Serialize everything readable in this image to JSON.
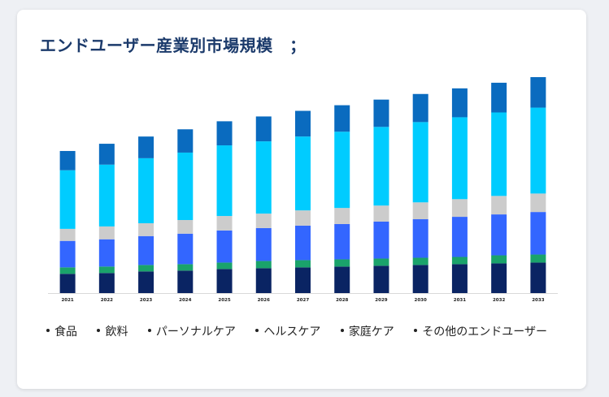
{
  "title": "エンドユーザー産業別市場規模　；",
  "chart_data": {
    "type": "bar",
    "stacked": true,
    "title": "エンドユーザー産業別市場規模　；",
    "xlabel": "",
    "ylabel": "",
    "grid": false,
    "legend_position": "bottom",
    "categories": [
      "2021",
      "2022",
      "2023",
      "2024",
      "2025",
      "2026",
      "2027",
      "2028",
      "2029",
      "2030",
      "2031",
      "2032",
      "2033"
    ],
    "ylim": [
      0,
      270
    ],
    "series": [
      {
        "name": "食品",
        "color": "#0a2463",
        "values": [
          24,
          25,
          27,
          28,
          30,
          31,
          32,
          33,
          34,
          35,
          36,
          37,
          38
        ]
      },
      {
        "name": "飲料",
        "color": "#1aa36b",
        "values": [
          8,
          8,
          8,
          8,
          8,
          9,
          9,
          9,
          9,
          9,
          9,
          10,
          10
        ]
      },
      {
        "name": "パーソナルケア",
        "color": "#3366ff",
        "values": [
          33,
          34,
          36,
          38,
          40,
          41,
          43,
          44,
          46,
          48,
          50,
          51,
          53
        ]
      },
      {
        "name": "ヘルスケア",
        "color": "#cccccc",
        "values": [
          15,
          16,
          16,
          17,
          18,
          18,
          19,
          20,
          20,
          21,
          22,
          23,
          23
        ]
      },
      {
        "name": "家庭ケア",
        "color": "#00ccff",
        "values": [
          73,
          77,
          81,
          84,
          88,
          90,
          92,
          95,
          98,
          100,
          102,
          104,
          107
        ]
      },
      {
        "name": "その他のエンドユーザー",
        "color": "#0a6bbf",
        "values": [
          24,
          26,
          27,
          29,
          30,
          31,
          32,
          33,
          34,
          35,
          36,
          37,
          38
        ]
      }
    ]
  },
  "legend": {
    "items": [
      "食品",
      "飲料",
      "パーソナルケア",
      "ヘルスケア",
      "家庭ケア",
      "その他のエンドユーザー"
    ]
  }
}
